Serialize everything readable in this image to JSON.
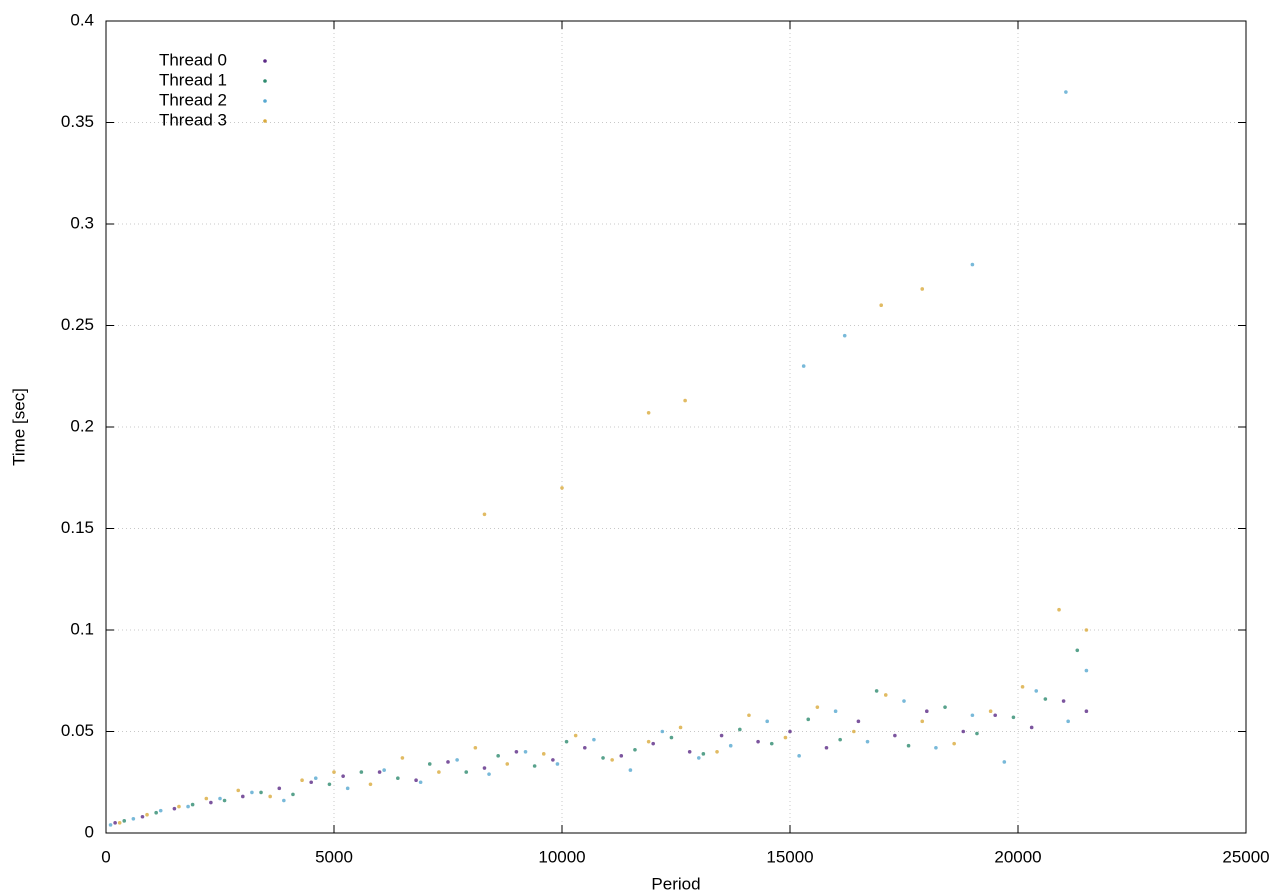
{
  "chart_data": {
    "type": "scatter",
    "x_label": "Period",
    "y_label": "Time [sec]",
    "xlim": [
      0,
      25000
    ],
    "xticks": [
      0,
      5000,
      10000,
      15000,
      20000,
      25000
    ],
    "ylim": [
      0,
      0.4
    ],
    "yticks": [
      0,
      0.05,
      0.1,
      0.15,
      0.2,
      0.25,
      0.3,
      0.35,
      0.4
    ],
    "grid": true,
    "legend": "top-left",
    "series": [
      {
        "name": "Thread 0",
        "color": "#5b2a86",
        "x": [
          200,
          800,
          1500,
          2300,
          3000,
          3800,
          4500,
          5200,
          6000,
          6800,
          7500,
          8300,
          9000,
          9800,
          10500,
          11300,
          12000,
          12800,
          13500,
          14300,
          15000,
          15800,
          16500,
          17300,
          18000,
          18800,
          19500,
          20300,
          21000,
          21500
        ],
        "values": [
          0.005,
          0.008,
          0.012,
          0.015,
          0.018,
          0.022,
          0.025,
          0.028,
          0.03,
          0.026,
          0.035,
          0.032,
          0.04,
          0.036,
          0.042,
          0.038,
          0.044,
          0.04,
          0.048,
          0.045,
          0.05,
          0.042,
          0.055,
          0.048,
          0.06,
          0.05,
          0.058,
          0.052,
          0.065,
          0.06
        ]
      },
      {
        "name": "Thread 1",
        "color": "#2e8b6f",
        "x": [
          400,
          1100,
          1900,
          2600,
          3400,
          4100,
          4900,
          5600,
          6400,
          7100,
          7900,
          8600,
          9400,
          10100,
          10900,
          11600,
          12400,
          13100,
          13900,
          14600,
          15400,
          16100,
          16900,
          17600,
          18400,
          19100,
          19900,
          20600,
          21300
        ],
        "values": [
          0.006,
          0.01,
          0.014,
          0.016,
          0.02,
          0.019,
          0.024,
          0.03,
          0.027,
          0.034,
          0.03,
          0.038,
          0.033,
          0.045,
          0.037,
          0.041,
          0.047,
          0.039,
          0.051,
          0.044,
          0.056,
          0.046,
          0.07,
          0.043,
          0.062,
          0.049,
          0.057,
          0.066,
          0.09
        ]
      },
      {
        "name": "Thread 2",
        "color": "#56a8d0",
        "x": [
          100,
          600,
          1200,
          1800,
          2500,
          3200,
          3900,
          4600,
          5300,
          6100,
          6900,
          7700,
          8400,
          9200,
          9900,
          10700,
          11500,
          12200,
          13000,
          13700,
          14500,
          15200,
          16000,
          16700,
          17500,
          18200,
          19000,
          19700,
          20400,
          21100,
          21500,
          15300,
          16200,
          19000,
          21050
        ],
        "values": [
          0.004,
          0.007,
          0.011,
          0.013,
          0.017,
          0.02,
          0.016,
          0.027,
          0.022,
          0.031,
          0.025,
          0.036,
          0.029,
          0.04,
          0.034,
          0.046,
          0.031,
          0.05,
          0.037,
          0.043,
          0.055,
          0.038,
          0.06,
          0.045,
          0.065,
          0.042,
          0.058,
          0.035,
          0.07,
          0.055,
          0.08,
          0.23,
          0.245,
          0.28,
          0.365
        ]
      },
      {
        "name": "Thread 3",
        "color": "#d9aa3c",
        "x": [
          300,
          900,
          1600,
          2200,
          2900,
          3600,
          4300,
          5000,
          5800,
          6500,
          7300,
          8100,
          8800,
          9600,
          10300,
          11100,
          11900,
          12600,
          13400,
          14100,
          14900,
          15600,
          16400,
          17100,
          17900,
          18600,
          19400,
          20100,
          20900,
          21500,
          8300,
          10000,
          11900,
          12700,
          17000,
          17900
        ],
        "values": [
          0.005,
          0.009,
          0.013,
          0.017,
          0.021,
          0.018,
          0.026,
          0.03,
          0.024,
          0.037,
          0.03,
          0.042,
          0.034,
          0.039,
          0.048,
          0.036,
          0.045,
          0.052,
          0.04,
          0.058,
          0.047,
          0.062,
          0.05,
          0.068,
          0.055,
          0.044,
          0.06,
          0.072,
          0.11,
          0.1,
          0.157,
          0.17,
          0.207,
          0.213,
          0.26,
          0.268
        ]
      }
    ]
  }
}
